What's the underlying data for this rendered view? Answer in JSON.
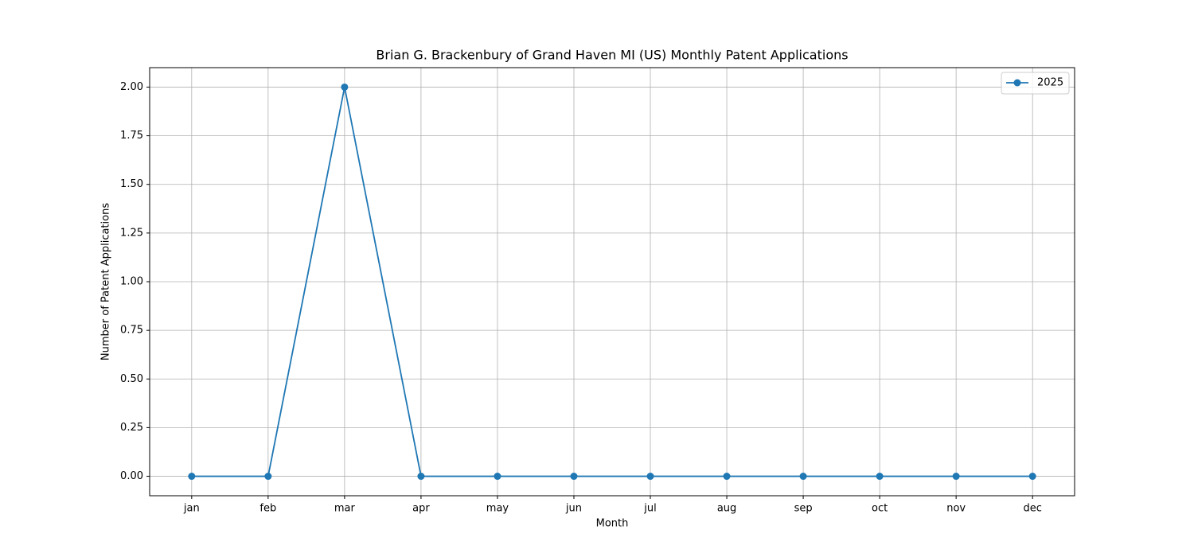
{
  "chart_data": {
    "type": "line",
    "title": "Brian G. Brackenbury of Grand Haven MI (US) Monthly Patent Applications",
    "xlabel": "Month",
    "ylabel": "Number of Patent Applications",
    "categories": [
      "jan",
      "feb",
      "mar",
      "apr",
      "may",
      "jun",
      "jul",
      "aug",
      "sep",
      "oct",
      "nov",
      "dec"
    ],
    "series": [
      {
        "name": "2025",
        "color": "#1f77b4",
        "values": [
          0,
          0,
          2,
          0,
          0,
          0,
          0,
          0,
          0,
          0,
          0,
          0
        ]
      }
    ],
    "ylim": [
      -0.1,
      2.1
    ],
    "yticks": [
      {
        "value": 0,
        "label": "0.00"
      },
      {
        "value": 0.25,
        "label": "0.25"
      },
      {
        "value": 0.5,
        "label": "0.50"
      },
      {
        "value": 0.75,
        "label": "0.75"
      },
      {
        "value": 1,
        "label": "1.00"
      },
      {
        "value": 1.25,
        "label": "1.25"
      },
      {
        "value": 1.5,
        "label": "1.50"
      },
      {
        "value": 1.75,
        "label": "1.75"
      },
      {
        "value": 2,
        "label": "2.00"
      }
    ],
    "grid": true,
    "legend": "upper right"
  }
}
